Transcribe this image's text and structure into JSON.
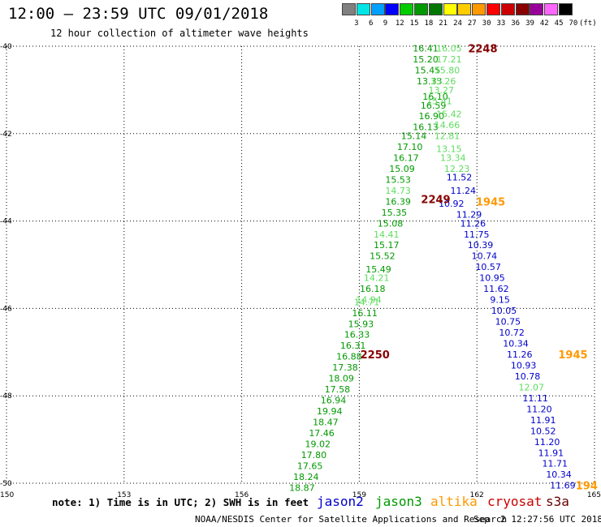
{
  "header": {
    "title": "12:00 – 23:59 UTC 09/01/2018",
    "subtitle": "12 hour collection of altimeter wave heights"
  },
  "color_scale": {
    "labels": [
      "3",
      "6",
      "9",
      "12",
      "15",
      "18",
      "21",
      "24",
      "27",
      "30",
      "33",
      "36",
      "39",
      "42",
      "45",
      "70"
    ],
    "unit": "(ft)",
    "colors": [
      "#808080",
      "#00e5e5",
      "#00a0ff",
      "#0000ff",
      "#00cc00",
      "#009900",
      "#007700",
      "#ffff00",
      "#ffcc00",
      "#ff9900",
      "#ff0000",
      "#cc0000",
      "#880000",
      "#990099",
      "#ff66ff",
      "#000000"
    ]
  },
  "footer": {
    "note": "note: 1) Time is in UTC; 2) SWH is in feet",
    "credit": "NOAA/NESDIS Center for Satellite Applications and Research",
    "timestamp": "Sep  2 12:27:56 UTC 2018",
    "satellites": [
      {
        "name": "jason2",
        "color": "#0000cc"
      },
      {
        "name": "jason3",
        "color": "#009900"
      },
      {
        "name": "altika",
        "color": "#ff9900"
      },
      {
        "name": "cryosat",
        "color": "#cc0000"
      },
      {
        "name": "s3a",
        "color": "#660000"
      }
    ]
  },
  "chart_data": {
    "type": "scatter",
    "xlim": [
      150,
      165
    ],
    "ylim": [
      -50,
      -40
    ],
    "x_ticks": [
      150,
      153,
      156,
      159,
      162,
      165
    ],
    "y_ticks": [
      -40,
      -42,
      -44,
      -46,
      -48,
      -50
    ],
    "x_tick_labels": [
      "150",
      "153",
      "156",
      "159",
      "162",
      "165"
    ],
    "y_tick_labels": [
      "-40",
      "-42",
      "-44",
      "-46",
      "-48",
      "-50"
    ],
    "grid": true,
    "series": [
      {
        "name": "jason2",
        "color": "#0000cc",
        "points": [
          {
            "lon": 161.55,
            "lat": -43.0,
            "swh": "11.52"
          },
          {
            "lon": 161.65,
            "lat": -43.3,
            "swh": "11.24"
          },
          {
            "lon": 161.35,
            "lat": -43.6,
            "swh": "10.92"
          },
          {
            "lon": 161.8,
            "lat": -43.85,
            "swh": "11.29"
          },
          {
            "lon": 161.9,
            "lat": -44.05,
            "swh": "11.26"
          },
          {
            "lon": 161.99,
            "lat": -44.3,
            "swh": "11.75"
          },
          {
            "lon": 162.09,
            "lat": -44.55,
            "swh": "10.39"
          },
          {
            "lon": 162.19,
            "lat": -44.8,
            "swh": "10.74"
          },
          {
            "lon": 162.29,
            "lat": -45.05,
            "swh": "10.57"
          },
          {
            "lon": 162.39,
            "lat": -45.3,
            "swh": "10.95"
          },
          {
            "lon": 162.49,
            "lat": -45.55,
            "swh": "11.62"
          },
          {
            "lon": 162.59,
            "lat": -45.8,
            "swh": "9.15"
          },
          {
            "lon": 162.69,
            "lat": -46.05,
            "swh": "10.05"
          },
          {
            "lon": 162.79,
            "lat": -46.3,
            "swh": "10.75"
          },
          {
            "lon": 162.89,
            "lat": -46.55,
            "swh": "10.72"
          },
          {
            "lon": 162.99,
            "lat": -46.8,
            "swh": "10.34"
          },
          {
            "lon": 163.09,
            "lat": -47.05,
            "swh": "11.26"
          },
          {
            "lon": 163.19,
            "lat": -47.3,
            "swh": "10.93"
          },
          {
            "lon": 163.29,
            "lat": -47.55,
            "swh": "10.78"
          },
          {
            "lon": 163.49,
            "lat": -48.05,
            "swh": "11.11"
          },
          {
            "lon": 163.59,
            "lat": -48.3,
            "swh": "11.20"
          },
          {
            "lon": 163.69,
            "lat": -48.55,
            "swh": "11.91"
          },
          {
            "lon": 163.69,
            "lat": -48.8,
            "swh": "10.52"
          },
          {
            "lon": 163.79,
            "lat": -49.05,
            "swh": "11.20"
          },
          {
            "lon": 163.89,
            "lat": -49.3,
            "swh": "11.91"
          },
          {
            "lon": 163.99,
            "lat": -49.55,
            "swh": "11.71"
          },
          {
            "lon": 164.09,
            "lat": -49.8,
            "swh": "10.34"
          },
          {
            "lon": 164.19,
            "lat": -50.05,
            "swh": "11.69"
          }
        ]
      },
      {
        "name": "jason3",
        "color": "#009900",
        "points": [
          {
            "lon": 160.69,
            "lat": -40.05,
            "swh": "16.41"
          },
          {
            "lon": 160.69,
            "lat": -40.3,
            "swh": "15.20"
          },
          {
            "lon": 160.74,
            "lat": -40.55,
            "swh": "15.45"
          },
          {
            "lon": 160.79,
            "lat": -40.8,
            "swh": "13.33"
          },
          {
            "lon": 160.94,
            "lat": -41.15,
            "swh": "16.10"
          },
          {
            "lon": 160.89,
            "lat": -41.35,
            "swh": "16.59"
          },
          {
            "lon": 160.84,
            "lat": -41.6,
            "swh": "16.90"
          },
          {
            "lon": 160.69,
            "lat": -41.85,
            "swh": "16.13"
          },
          {
            "lon": 160.39,
            "lat": -42.05,
            "swh": "15.14"
          },
          {
            "lon": 160.29,
            "lat": -42.3,
            "swh": "17.10"
          },
          {
            "lon": 160.19,
            "lat": -42.55,
            "swh": "16.17"
          },
          {
            "lon": 160.09,
            "lat": -42.8,
            "swh": "15.09"
          },
          {
            "lon": 159.99,
            "lat": -43.05,
            "swh": "15.53"
          },
          {
            "lon": 159.99,
            "lat": -43.55,
            "swh": "16.39"
          },
          {
            "lon": 159.89,
            "lat": -43.8,
            "swh": "15.35"
          },
          {
            "lon": 159.79,
            "lat": -44.05,
            "swh": "15.08"
          },
          {
            "lon": 159.69,
            "lat": -44.55,
            "swh": "15.17"
          },
          {
            "lon": 159.59,
            "lat": -44.8,
            "swh": "15.52"
          },
          {
            "lon": 159.49,
            "lat": -45.1,
            "swh": "15.49"
          },
          {
            "lon": 159.34,
            "lat": -45.55,
            "swh": "16.18"
          },
          {
            "lon": 159.14,
            "lat": -46.1,
            "swh": "16.11"
          },
          {
            "lon": 159.04,
            "lat": -46.35,
            "swh": "15.93"
          },
          {
            "lon": 158.94,
            "lat": -46.6,
            "swh": "16.33"
          },
          {
            "lon": 158.84,
            "lat": -46.85,
            "swh": "16.31"
          },
          {
            "lon": 158.74,
            "lat": -47.1,
            "swh": "16.88"
          },
          {
            "lon": 158.64,
            "lat": -47.35,
            "swh": "17.38"
          },
          {
            "lon": 158.54,
            "lat": -47.6,
            "swh": "18.09"
          },
          {
            "lon": 158.44,
            "lat": -47.85,
            "swh": "17.58"
          },
          {
            "lon": 158.34,
            "lat": -48.1,
            "swh": "16.94"
          },
          {
            "lon": 158.24,
            "lat": -48.35,
            "swh": "19.94"
          },
          {
            "lon": 158.14,
            "lat": -48.6,
            "swh": "18.47"
          },
          {
            "lon": 158.04,
            "lat": -48.85,
            "swh": "17.46"
          },
          {
            "lon": 157.94,
            "lat": -49.1,
            "swh": "19.02"
          },
          {
            "lon": 157.84,
            "lat": -49.35,
            "swh": "17.80"
          },
          {
            "lon": 157.74,
            "lat": -49.6,
            "swh": "17.65"
          },
          {
            "lon": 157.64,
            "lat": -49.85,
            "swh": "18.24"
          },
          {
            "lon": 157.54,
            "lat": -50.1,
            "swh": "18.87"
          }
        ]
      },
      {
        "name": "jason3 (light)",
        "color": "#5fdc5f",
        "points": [
          {
            "lon": 161.29,
            "lat": -40.05,
            "swh": "16.05"
          },
          {
            "lon": 161.29,
            "lat": -40.3,
            "swh": "17.21"
          },
          {
            "lon": 161.24,
            "lat": -40.55,
            "swh": "15.80"
          },
          {
            "lon": 161.14,
            "lat": -40.8,
            "swh": "15.26"
          },
          {
            "lon": 161.09,
            "lat": -41.0,
            "swh": "13.27"
          },
          {
            "lon": 161.04,
            "lat": -41.25,
            "swh": "15.41"
          },
          {
            "lon": 161.29,
            "lat": -41.55,
            "swh": "15.42"
          },
          {
            "lon": 161.24,
            "lat": -41.8,
            "swh": "14.66"
          },
          {
            "lon": 161.24,
            "lat": -42.05,
            "swh": "12.81"
          },
          {
            "lon": 161.29,
            "lat": -42.35,
            "swh": "13.15"
          },
          {
            "lon": 161.39,
            "lat": -42.55,
            "swh": "13.34"
          },
          {
            "lon": 161.49,
            "lat": -42.8,
            "swh": "12.23"
          },
          {
            "lon": 159.99,
            "lat": -43.3,
            "swh": "14.73"
          },
          {
            "lon": 159.69,
            "lat": -44.3,
            "swh": "14.41"
          },
          {
            "lon": 159.44,
            "lat": -45.3,
            "swh": "14.21"
          },
          {
            "lon": 159.24,
            "lat": -45.8,
            "swh": "14.94"
          },
          {
            "lon": 159.19,
            "lat": -45.85,
            "swh": "14.71"
          },
          {
            "lon": 163.39,
            "lat": -47.8,
            "swh": "12.07"
          }
        ]
      }
    ],
    "time_labels": [
      {
        "text": "2248",
        "lon": 162.15,
        "lat": -40.05,
        "color": "#880000"
      },
      {
        "text": "2249",
        "lon": 160.95,
        "lat": -43.5,
        "color": "#880000"
      },
      {
        "text": "2250",
        "lon": 159.4,
        "lat": -47.05,
        "color": "#880000"
      },
      {
        "text": "1945",
        "lon": 162.35,
        "lat": -43.55,
        "color": "#ff9900"
      },
      {
        "text": "1945",
        "lon": 164.45,
        "lat": -47.05,
        "color": "#ff9900"
      },
      {
        "text": "194",
        "lon": 164.8,
        "lat": -50.05,
        "color": "#ff9900"
      }
    ]
  }
}
